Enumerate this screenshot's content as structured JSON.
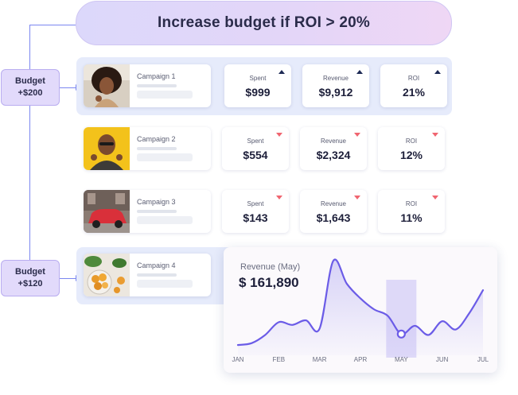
{
  "rule": {
    "text": "Increase budget if ROI > 20%"
  },
  "budget_tags": [
    {
      "line1": "Budget",
      "line2": "+$200"
    },
    {
      "line1": "Budget",
      "line2": "+$120"
    }
  ],
  "campaigns": [
    {
      "name": "Campaign 1",
      "metrics": [
        {
          "label": "Spent",
          "value": "$999",
          "trend": "up"
        },
        {
          "label": "Revenue",
          "value": "$9,912",
          "trend": "up"
        },
        {
          "label": "ROI",
          "value": "21%",
          "trend": "up"
        }
      ]
    },
    {
      "name": "Campaign 2",
      "metrics": [
        {
          "label": "Spent",
          "value": "$554",
          "trend": "down"
        },
        {
          "label": "Revenue",
          "value": "$2,324",
          "trend": "down"
        },
        {
          "label": "ROI",
          "value": "12%",
          "trend": "down"
        }
      ]
    },
    {
      "name": "Campaign 3",
      "metrics": [
        {
          "label": "Spent",
          "value": "$143",
          "trend": "down"
        },
        {
          "label": "Revenue",
          "value": "$1,643",
          "trend": "down"
        },
        {
          "label": "ROI",
          "value": "11%",
          "trend": "down"
        }
      ]
    },
    {
      "name": "Campaign 4"
    }
  ],
  "colors": {
    "accent": "#6b5ce7",
    "trend_up": "#1e2a55",
    "trend_down": "#f06570",
    "highlight_band": "#d8d3f7"
  },
  "icons": {
    "trend_up": "triangle-up-icon",
    "trend_down": "triangle-down-icon"
  },
  "chart_data": {
    "type": "line",
    "title": "Revenue (May)",
    "headline_value": "$ 161,890",
    "x_labels": [
      "JAN",
      "FEB",
      "MAR",
      "APR",
      "MAY",
      "JUN",
      "JUL"
    ],
    "highlighted": "MAY",
    "series": [
      {
        "values": [
          6,
          8,
          17,
          31,
          28,
          33,
          24,
          98,
          73,
          57,
          45,
          38,
          18,
          27,
          17,
          32,
          23,
          41,
          66
        ]
      }
    ],
    "ylim": [
      0,
      100
    ],
    "grid": false,
    "legend": "none"
  }
}
